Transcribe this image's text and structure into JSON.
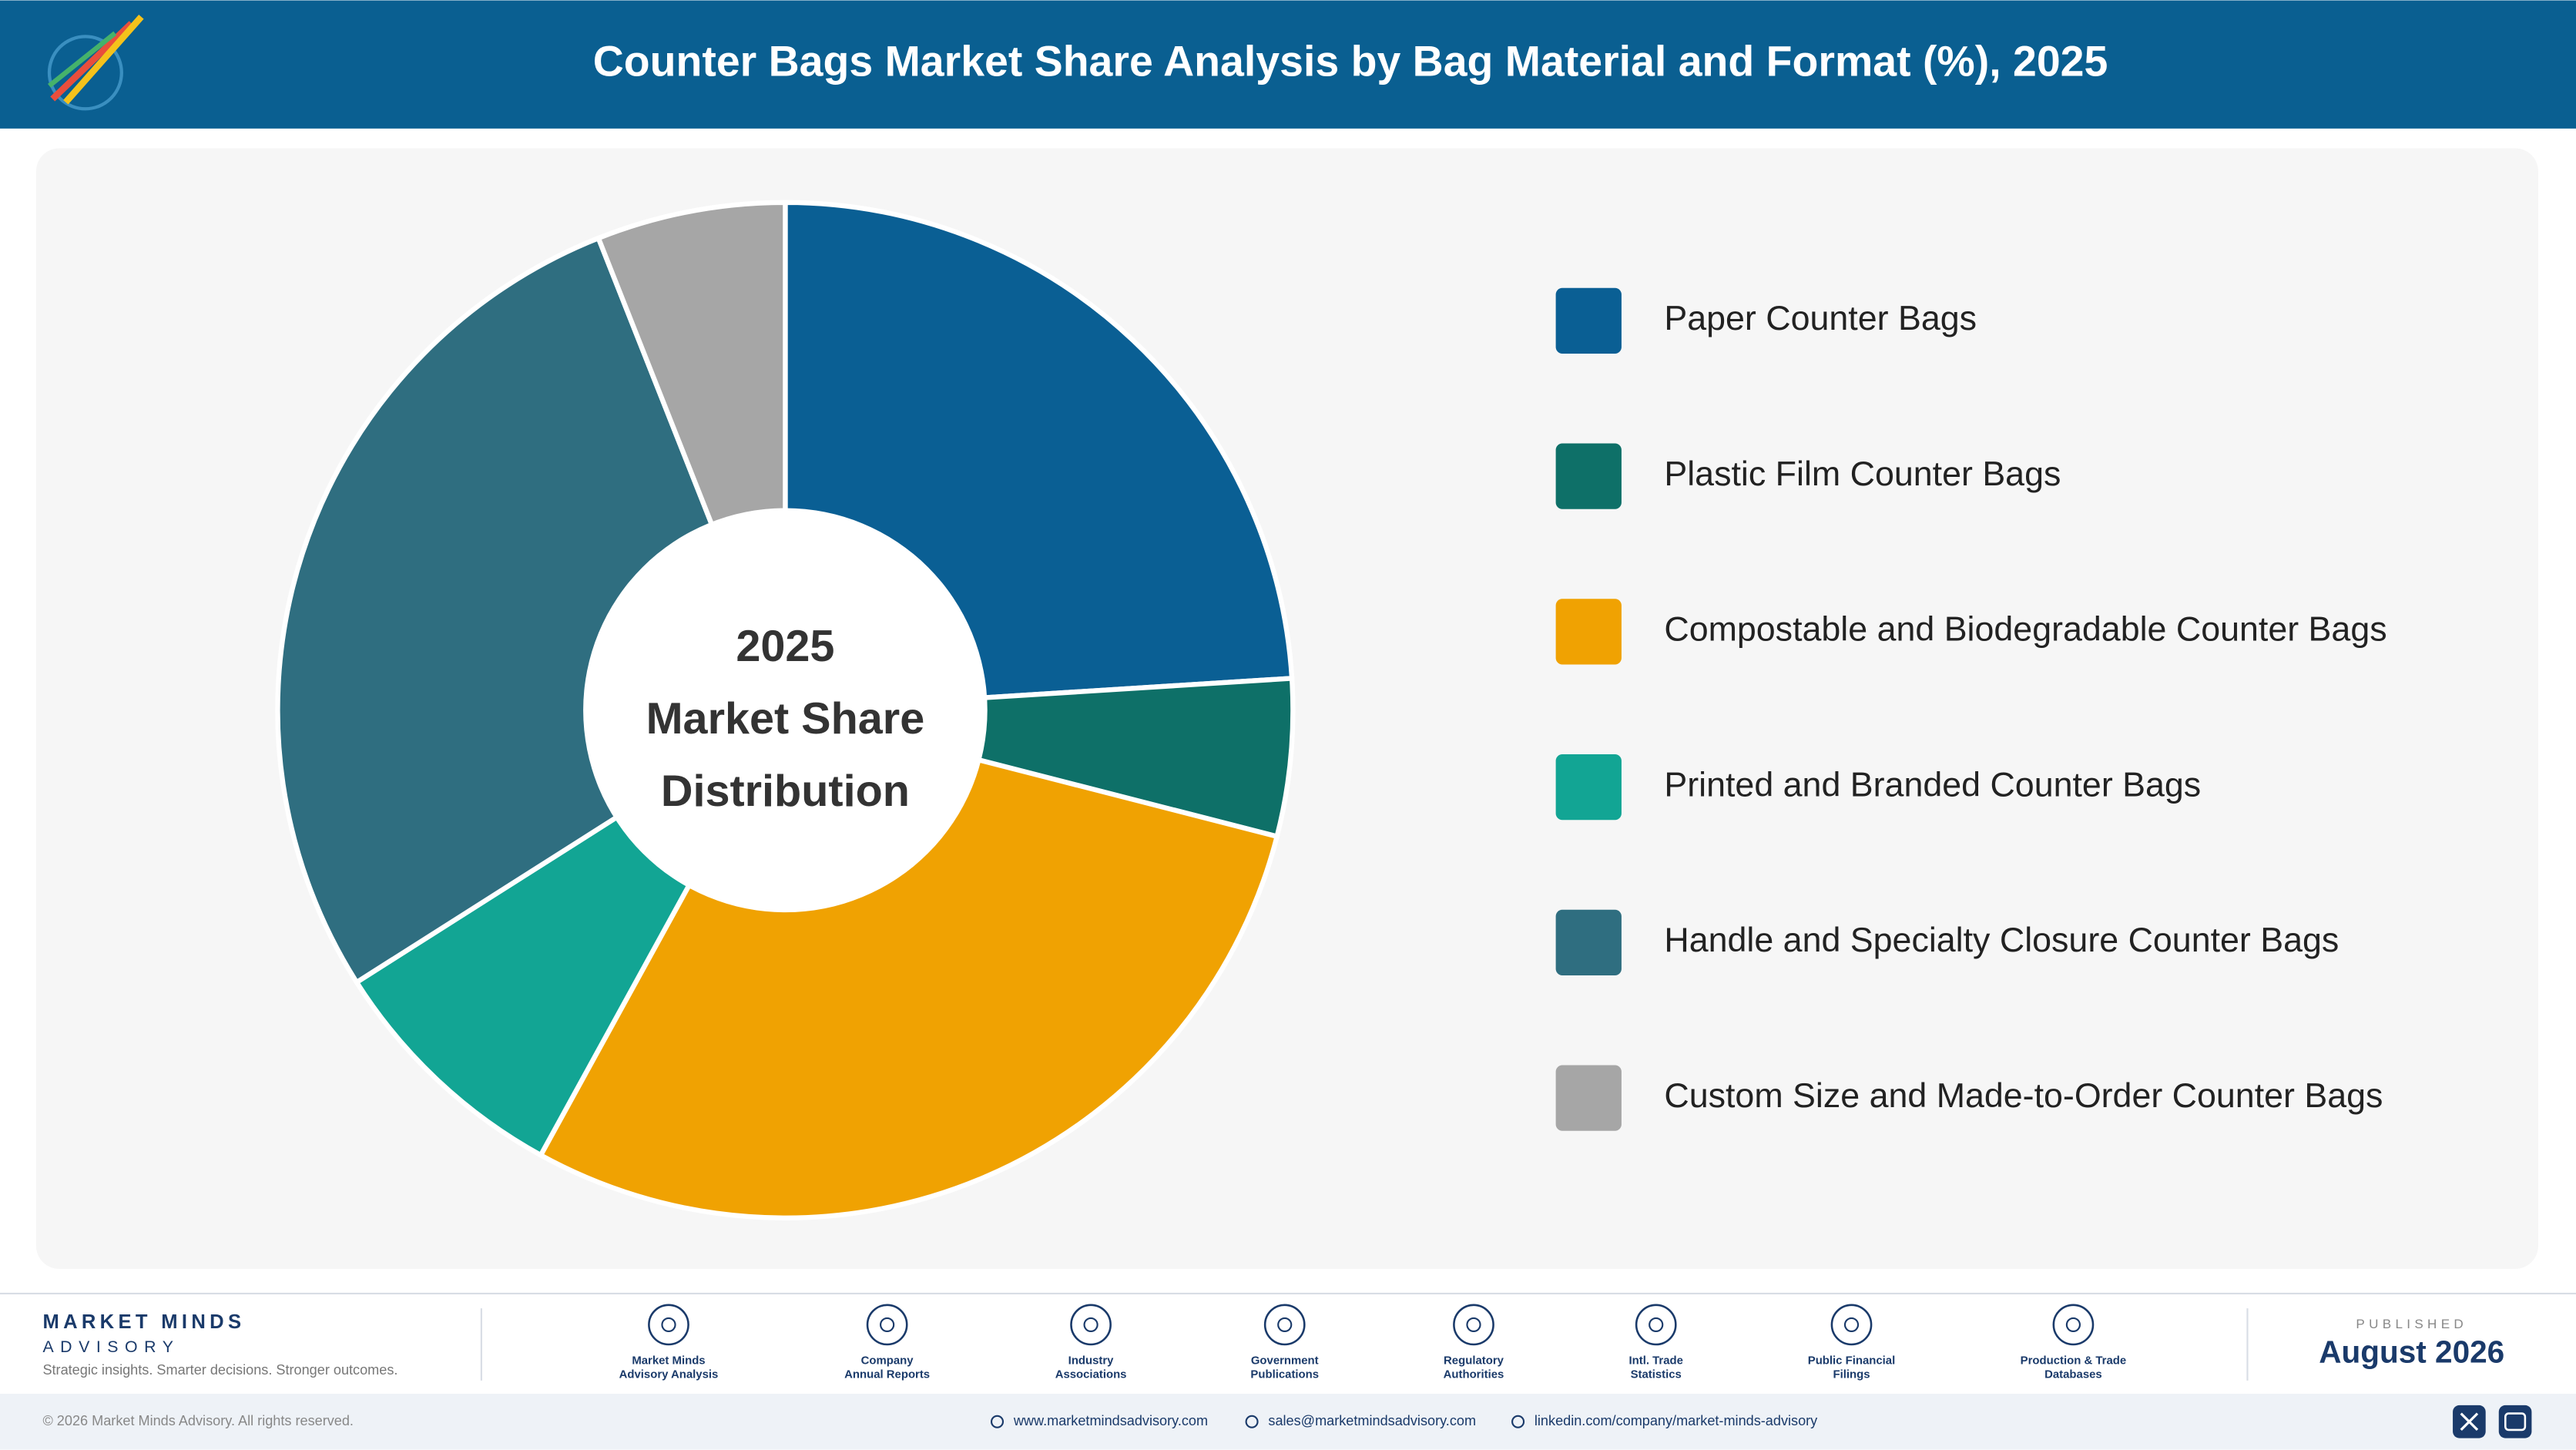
{
  "header": {
    "title": "Counter Bags Market Share Analysis by Bag Material and Format (%), 2025"
  },
  "chart_data": {
    "type": "pie",
    "center_text": [
      "2025",
      "Market Share",
      "Distribution"
    ],
    "categories": [
      "Paper Counter Bags",
      "Plastic Film Counter Bags",
      "Compostable and Biodegradable Counter Bags",
      "Printed and Branded Counter Bags",
      "Handle and Specialty Closure Counter Bags",
      "Custom Size and Made-to-Order Counter Bags"
    ],
    "values": [
      24,
      5,
      29,
      8,
      28,
      6
    ],
    "colors": [
      "#0a5f94",
      "#0e7068",
      "#f0a202",
      "#12a594",
      "#2f6e80",
      "#a6a6a6"
    ],
    "legend": "right"
  },
  "footer": {
    "brand": "MARKET MINDS",
    "brand_sub": "ADVISORY",
    "tagline": "Strategic insights. Smarter decisions. Stronger outcomes.",
    "sources": [
      [
        "Market Minds",
        "Advisory Analysis"
      ],
      [
        "Company",
        "Annual Reports"
      ],
      [
        "Industry",
        "Associations"
      ],
      [
        "Government",
        "Publications"
      ],
      [
        "Regulatory",
        "Authorities"
      ],
      [
        "Intl. Trade",
        "Statistics"
      ],
      [
        "Public Financial",
        "Filings"
      ],
      [
        "Production & Trade",
        "Databases"
      ]
    ],
    "published_label": "PUBLISHED",
    "published_date": "August 2026",
    "copyright": "© 2026 Market Minds Advisory. All rights reserved.",
    "links": [
      "www.marketmindsadvisory.com",
      "sales@marketmindsadvisory.com",
      "linkedin.com/company/market-minds-advisory"
    ]
  }
}
